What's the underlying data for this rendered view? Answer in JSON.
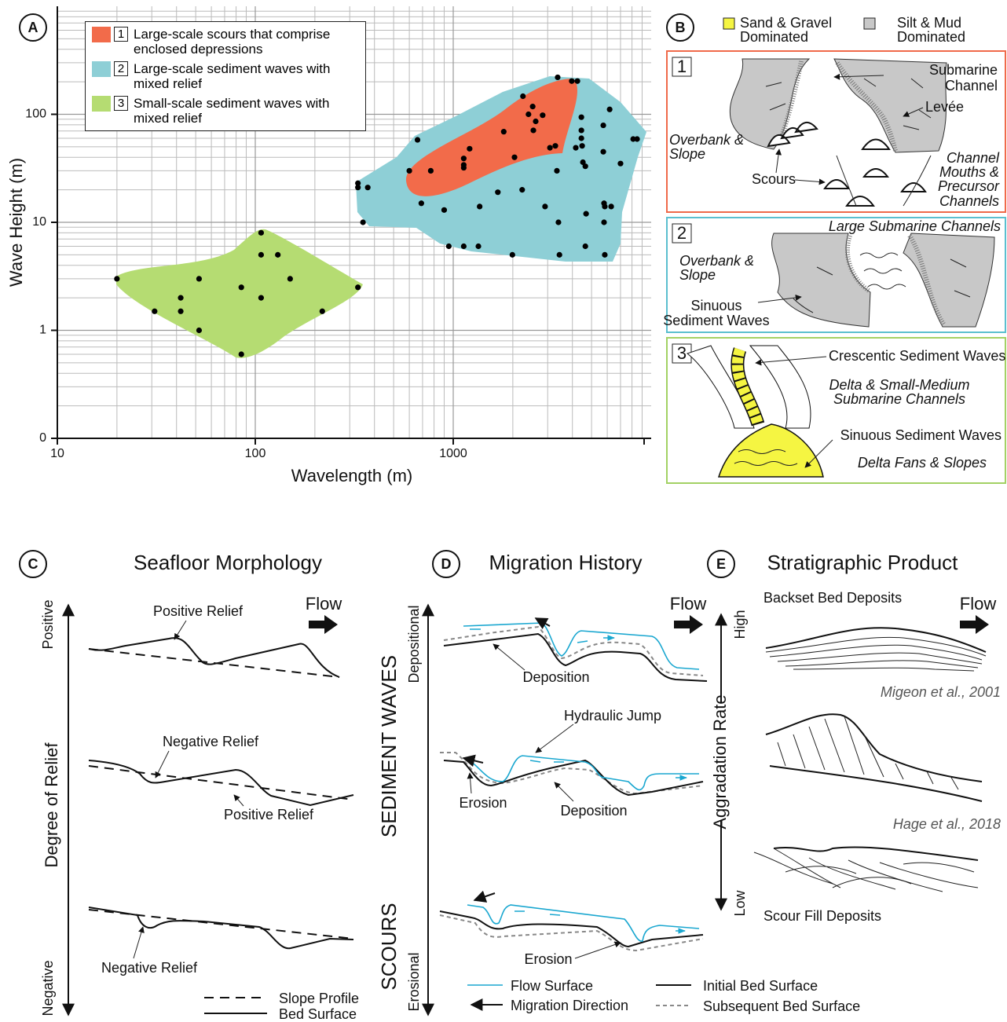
{
  "chart_data": {
    "type": "scatter",
    "xlabel": "Wavelength (m)",
    "ylabel": "Wave Height (m)",
    "xscale": "log",
    "yscale": "log",
    "xlim": [
      10,
      10000
    ],
    "ylim": [
      0.1,
      1000
    ],
    "xticks": [
      10,
      100,
      1000
    ],
    "yticks": [
      {
        "value": 0.1,
        "label": "0"
      },
      1,
      10,
      100
    ],
    "grid": true,
    "minor_grid": true,
    "legend": [
      {
        "key": "1",
        "name": "Large-scale scours that comprise enclosed depressions",
        "color": "#f26b4a"
      },
      {
        "key": "2",
        "name": "Large-scale sediment waves with mixed relief",
        "color": "#8ecfd6"
      },
      {
        "key": "3",
        "name": "Small-scale sediment waves with mixed relief",
        "color": "#b5dc72"
      }
    ],
    "series": [
      {
        "color": "#000000",
        "x": [
          20,
          31,
          42,
          42,
          52,
          52,
          85,
          85,
          107,
          107,
          107,
          130,
          150,
          218,
          330,
          330,
          330,
          370,
          350,
          660,
          600,
          770,
          690,
          900,
          950,
          1130,
          1210,
          1130,
          1130,
          1130,
          1340,
          1360,
          1680,
          1800,
          1990,
          2040,
          2230,
          2250,
          2400,
          2520,
          2610,
          2540,
          2830,
          2910,
          3080,
          3280,
          3370,
          3400,
          3440,
          3340,
          3970,
          4240,
          4160,
          4480,
          4440,
          4440,
          4440,
          4520,
          4650,
          4650,
          4690,
          5730,
          5730,
          5780,
          5780,
          5830,
          5830,
          6170,
          6280,
          7000,
          8110,
          8490
        ],
        "values": [
          3,
          1.5,
          2,
          1.5,
          3,
          1,
          2.5,
          0.6,
          8,
          5,
          2,
          5,
          3,
          1.5,
          2.5,
          23,
          21,
          21,
          10,
          58,
          30,
          30,
          15,
          13,
          6,
          6,
          48,
          39,
          34,
          32,
          6,
          14,
          19,
          69,
          5,
          40,
          20,
          147,
          100,
          118,
          86,
          71,
          98,
          14,
          49,
          51,
          220,
          10,
          5,
          30,
          203,
          203,
          49,
          51,
          94,
          71,
          60,
          36,
          33,
          6,
          12,
          79,
          45,
          15,
          10,
          14,
          5,
          111,
          14,
          35,
          59,
          59
        ]
      }
    ]
  },
  "labels": {
    "a": "A",
    "b": "B",
    "c": "C",
    "d": "D",
    "e": "E"
  },
  "panel_b": {
    "legend": [
      {
        "name": [
          "Sand & Gravel",
          "Dominated"
        ],
        "color": "#f5f542"
      },
      {
        "name": [
          "Silt & Mud",
          "Dominated"
        ],
        "color": "#c8c8c8"
      }
    ],
    "box1": {
      "key": "1",
      "submarine_channel": [
        "Submarine",
        "Channel"
      ],
      "levee": "Levée",
      "overbank": [
        "Overbank &",
        "Slope"
      ],
      "scours": "Scours",
      "channel_mouths": [
        "Channel",
        "Mouths &",
        "Precursor",
        "Channels"
      ]
    },
    "box2": {
      "key": "2",
      "large_channels": "Large Submarine Channels",
      "overbank": [
        "Overbank &",
        "Slope"
      ],
      "sinuous": [
        "Sinuous",
        "Sediment Waves"
      ]
    },
    "box3": {
      "key": "3",
      "crescentic": "Crescentic Sediment Waves",
      "delta": [
        "Delta & Small-Medium",
        "Submarine Channels"
      ],
      "sinuous": "Sinuous Sediment Waves",
      "fans": "Delta Fans & Slopes"
    }
  },
  "panel_c": {
    "title": "Seafloor Morphology",
    "flow": "Flow",
    "axis": "Degree of Relief",
    "top": "Positive",
    "bottom": "Negative",
    "annotations": [
      "Positive Relief",
      "Negative Relief",
      "Positive Relief",
      "Negative Relief"
    ],
    "legend": [
      "Slope Profile",
      "Bed Surface"
    ]
  },
  "panel_d": {
    "title": "Migration History",
    "flow": "Flow",
    "top": "Depositional",
    "bottom": "Erosional",
    "upper_group": "SEDIMENT WAVES",
    "lower_group": "SCOURS",
    "annotations": [
      "Deposition",
      "Hydraulic Jump",
      "Erosion",
      "Deposition",
      "Erosion"
    ],
    "legend": [
      "Flow Surface",
      "Migration Direction",
      "Initial Bed Surface",
      "Subsequent Bed Surface"
    ]
  },
  "panel_e": {
    "title": "Stratigraphic Product",
    "flow": "Flow",
    "axis": "Aggradation Rate",
    "top": "High",
    "bottom": "Low",
    "annotations": [
      "Backset Bed Deposits",
      "Scour Fill Deposits"
    ],
    "citations": [
      "Migeon et al., 2001",
      "Hage et al., 2018"
    ]
  }
}
